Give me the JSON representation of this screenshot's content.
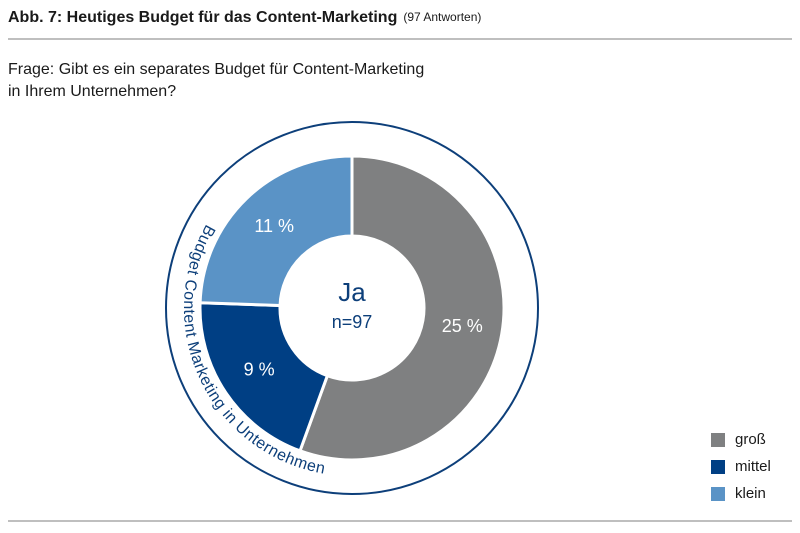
{
  "chart_data": {
    "type": "donut",
    "title": "Abb. 7: Heutiges Budget für das Content-Marketing",
    "subtitle": "(97 Antworten)",
    "question": [
      "Frage: Gibt es ein separates Budget für Content-Marketing",
      "in Ihrem Unternehmen?"
    ],
    "center_label": "Ja",
    "center_sublabel": "n=97",
    "ring_label": "Budget Content Marketing in Unternehmen",
    "categories": [
      "groß",
      "mittel",
      "klein"
    ],
    "values": [
      25,
      9,
      11
    ],
    "value_labels": [
      "25 %",
      "9 %",
      "11 %"
    ],
    "colors": [
      "#7f8081",
      "#003f84",
      "#5a93c6"
    ],
    "legend": "bottom-right"
  }
}
